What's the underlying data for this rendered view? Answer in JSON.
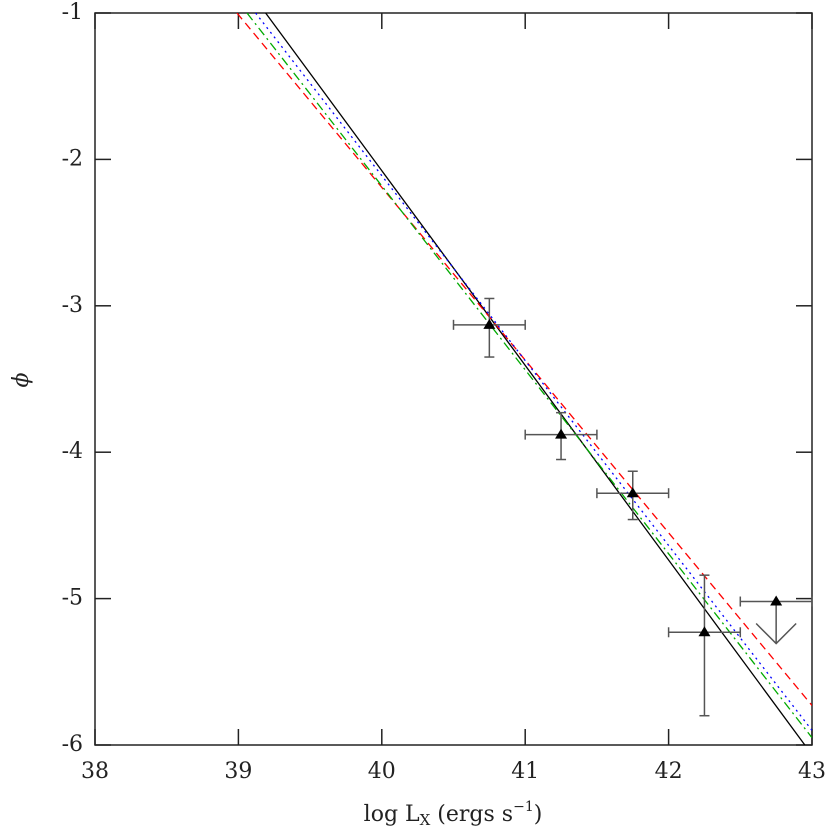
{
  "chart_data": {
    "type": "scatter",
    "xlabel": [
      "log L",
      "X",
      " (ergs s",
      "−1",
      ")"
    ],
    "ylabel": "ϕ",
    "xlim": [
      38,
      43
    ],
    "ylim": [
      -6,
      -1
    ],
    "xticks": [
      38,
      39,
      40,
      41,
      42,
      43
    ],
    "yticks": [
      -1,
      -2,
      -3,
      -4,
      -5,
      -6
    ],
    "points": {
      "color": "#000000",
      "x": [
        40.75,
        41.25,
        41.75,
        42.25,
        42.75
      ],
      "values": [
        -3.13,
        -3.88,
        -4.28,
        -5.23,
        -5.02
      ],
      "xerr": [
        0.25,
        0.25,
        0.25,
        0.25,
        0.25
      ],
      "yerr_high": [
        0.18,
        0.15,
        0.15,
        0.39,
        null
      ],
      "yerr_low": [
        0.22,
        0.17,
        0.18,
        0.57,
        null
      ],
      "upper_limit": [
        false,
        false,
        false,
        false,
        true
      ]
    },
    "lines": [
      {
        "color": "#000000",
        "dash": "solid",
        "x": [
          39.19,
          42.95
        ],
        "values": [
          -1,
          -6.0
        ]
      },
      {
        "color": "#ff0000",
        "dash": "dashed",
        "x": [
          38.99,
          43
        ],
        "values": [
          -1,
          -5.73
        ]
      },
      {
        "color": "#0000ff",
        "dash": "dotted",
        "x": [
          39.12,
          43
        ],
        "values": [
          -1,
          -5.9
        ]
      },
      {
        "color": "#00aa00",
        "dash": "dashdot",
        "x": [
          39.06,
          43
        ],
        "values": [
          -1,
          -5.95
        ]
      }
    ]
  }
}
